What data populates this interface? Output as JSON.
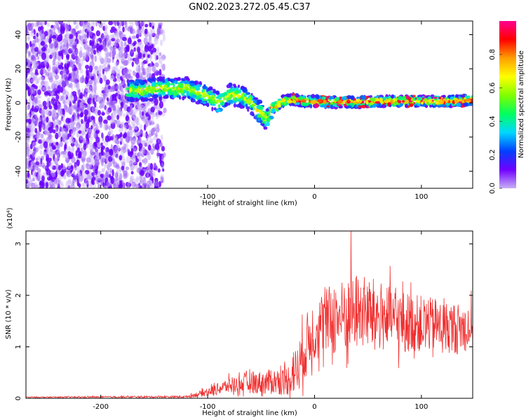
{
  "title": "GN02.2023.272.05.45.C37",
  "chart_data": [
    {
      "type": "heatmap",
      "xlabel": "Height of straight line (km)",
      "ylabel": "Frequency (Hz)",
      "xlim": [
        -270,
        148
      ],
      "ylim": [
        -50,
        48
      ],
      "xticks": [
        -200,
        -100,
        0,
        100
      ],
      "yticks": [
        -40,
        -20,
        0,
        20,
        40
      ],
      "colorbar": {
        "label": "Normalized spectral amplitude",
        "range": [
          0,
          1
        ],
        "ticks": [
          0.0,
          0.2,
          0.4,
          0.6,
          0.8
        ],
        "colormap": [
          "#c7b0f5",
          "#7000ff",
          "#0040ff",
          "#00d8ff",
          "#00ff60",
          "#80ff00",
          "#ffff00",
          "#ffa000",
          "#ff0000",
          "#ff0090"
        ]
      },
      "ridge": {
        "x": [
          -170,
          -150,
          -140,
          -130,
          -120,
          -110,
          -100,
          -90,
          -80,
          -70,
          -60,
          -55,
          -50,
          -45,
          -40,
          -35,
          -30,
          -20,
          -10,
          0,
          20,
          40,
          60,
          80,
          100,
          120,
          148
        ],
        "y": [
          7,
          8,
          9,
          8,
          9,
          6,
          4,
          0,
          5,
          4,
          1,
          -3,
          -6,
          -10,
          -3,
          -2,
          1,
          2,
          1,
          1,
          0.5,
          0.5,
          1,
          1,
          1,
          1,
          1.5
        ]
      }
    },
    {
      "type": "line",
      "xlabel": "Height of straight line (km)",
      "ylabel": "SNR (10 * v/v)",
      "yscale_label": "(x10⁴)",
      "xlim": [
        -270,
        148
      ],
      "ylim": [
        0,
        3.25
      ],
      "xticks": [
        -200,
        -100,
        0,
        100
      ],
      "yticks": [
        0,
        1,
        2,
        3
      ],
      "color": "#f03030",
      "envelope": {
        "x": [
          -270,
          -120,
          -100,
          -80,
          -60,
          -40,
          -25,
          -15,
          -5,
          10,
          20,
          30,
          40,
          60,
          80,
          100,
          120,
          135,
          148
        ],
        "mean": [
          0.02,
          0.03,
          0.12,
          0.25,
          0.3,
          0.32,
          0.35,
          0.6,
          1.2,
          1.5,
          1.55,
          1.6,
          1.7,
          1.6,
          1.5,
          1.45,
          1.4,
          1.35,
          1.4
        ],
        "amplitude": [
          0.01,
          0.02,
          0.08,
          0.15,
          0.2,
          0.25,
          0.3,
          0.5,
          0.6,
          0.65,
          0.7,
          0.75,
          0.75,
          0.7,
          0.6,
          0.55,
          0.5,
          0.5,
          0.45
        ]
      },
      "peak": {
        "x": 34,
        "y": 3.25
      }
    }
  ]
}
